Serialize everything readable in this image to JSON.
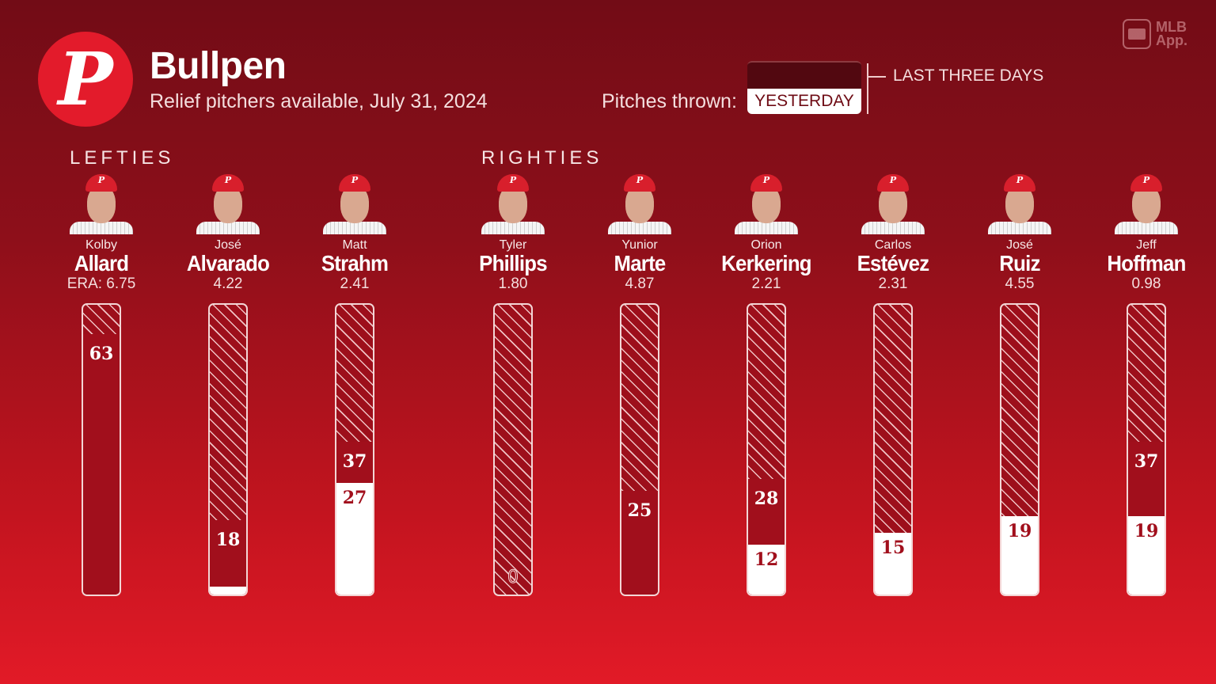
{
  "header": {
    "logo_letter": "P",
    "title": "Bullpen",
    "subtitle": "Relief pitchers available, July 31, 2024",
    "brand": "MLB App."
  },
  "legend": {
    "label": "Pitches thrown:",
    "yesterday": "YESTERDAY",
    "last_three_days": "LAST THREE DAYS"
  },
  "groups": {
    "lefties": "LEFTIES",
    "righties": "RIGHTIES"
  },
  "colors": {
    "background_top": "#720c16",
    "background_bottom": "#e21a27",
    "three_days": "#a10f1c",
    "yesterday": "#ffffff",
    "logo": "#e31b2b"
  },
  "chart_data": {
    "type": "bar",
    "series": [
      {
        "name": "LAST THREE DAYS",
        "values": [
          63,
          18,
          37,
          0,
          25,
          28,
          0,
          19,
          37
        ]
      },
      {
        "name": "YESTERDAY",
        "values": [
          0,
          2,
          27,
          0,
          0,
          12,
          15,
          19,
          19
        ]
      }
    ],
    "pitchers": [
      {
        "first": "Kolby",
        "last": "Allard",
        "era": "ERA: 6.75",
        "hand": "L",
        "three": "63",
        "yesterday": ""
      },
      {
        "first": "José",
        "last": "Alvarado",
        "era": "4.22",
        "hand": "L",
        "three": "18",
        "yesterday": ""
      },
      {
        "first": "Matt",
        "last": "Strahm",
        "era": "2.41",
        "hand": "L",
        "three": "37",
        "yesterday": "27"
      },
      {
        "first": "Tyler",
        "last": "Phillips",
        "era": "1.80",
        "hand": "R",
        "three": "0",
        "yesterday": ""
      },
      {
        "first": "Yunior",
        "last": "Marte",
        "era": "4.87",
        "hand": "R",
        "three": "25",
        "yesterday": ""
      },
      {
        "first": "Orion",
        "last": "Kerkering",
        "era": "2.21",
        "hand": "R",
        "three": "28",
        "yesterday": "12"
      },
      {
        "first": "Carlos",
        "last": "Estévez",
        "era": "2.31",
        "hand": "R",
        "three": "",
        "yesterday": "15"
      },
      {
        "first": "José",
        "last": "Ruiz",
        "era": "4.55",
        "hand": "R",
        "three": "",
        "yesterday": "19"
      },
      {
        "first": "Jeff",
        "last": "Hoffman",
        "era": "0.98",
        "hand": "R",
        "three": "37",
        "yesterday": "19"
      }
    ]
  }
}
